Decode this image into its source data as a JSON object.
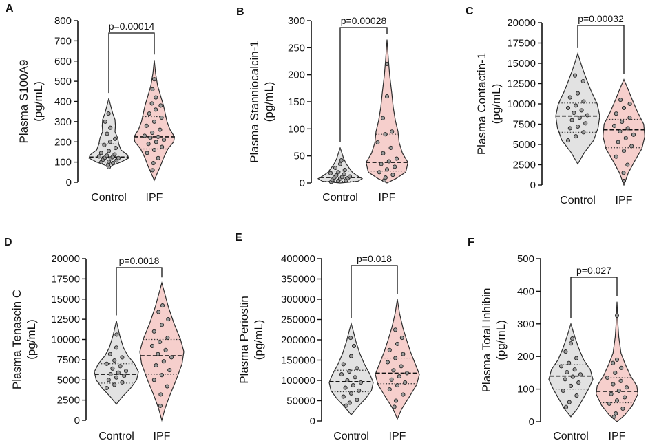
{
  "figure": {
    "panels": [
      "A",
      "B",
      "C",
      "D",
      "E",
      "F"
    ]
  },
  "colors": {
    "control_fill": "#e2e2e2",
    "ipf_fill": "#f6cfcc",
    "outline": "#2b2b2b",
    "point_fill": "#9a9a9a"
  },
  "chart_data": [
    {
      "panel": "A",
      "type": "violin",
      "ylabel_line1": "Plasma S100A9",
      "ylabel_line2": "(pg/mL)",
      "yticks": [
        "0",
        "100",
        "200",
        "300",
        "400",
        "500",
        "600",
        "700",
        "800"
      ],
      "ylim": [
        0,
        800
      ],
      "categories": [
        "Control",
        "IPF"
      ],
      "pvalue": "p=0.00014",
      "series": [
        {
          "name": "Control",
          "min": 70,
          "max": 415,
          "median": 125,
          "q1": 100,
          "q3": 190,
          "profile": [
            [
              70,
              0
            ],
            [
              85,
              0.18
            ],
            [
              100,
              0.55
            ],
            [
              120,
              0.9
            ],
            [
              135,
              0.85
            ],
            [
              160,
              0.55
            ],
            [
              190,
              0.45
            ],
            [
              220,
              0.4
            ],
            [
              250,
              0.28
            ],
            [
              280,
              0.3
            ],
            [
              310,
              0.28
            ],
            [
              340,
              0.18
            ],
            [
              380,
              0.08
            ],
            [
              415,
              0
            ]
          ],
          "points": [
            75,
            88,
            95,
            100,
            102,
            108,
            112,
            118,
            120,
            122,
            125,
            128,
            132,
            138,
            145,
            155,
            170,
            185,
            200,
            215,
            240,
            270,
            300,
            340
          ]
        },
        {
          "name": "IPF",
          "min": 10,
          "max": 605,
          "median": 225,
          "q1": 165,
          "q3": 325,
          "profile": [
            [
              10,
              0
            ],
            [
              40,
              0.12
            ],
            [
              80,
              0.28
            ],
            [
              120,
              0.42
            ],
            [
              165,
              0.62
            ],
            [
              200,
              0.88
            ],
            [
              225,
              0.92
            ],
            [
              260,
              0.72
            ],
            [
              300,
              0.58
            ],
            [
              340,
              0.5
            ],
            [
              380,
              0.42
            ],
            [
              430,
              0.28
            ],
            [
              480,
              0.15
            ],
            [
              540,
              0.06
            ],
            [
              605,
              0
            ]
          ],
          "points": [
            60,
            95,
            120,
            145,
            160,
            175,
            190,
            200,
            210,
            220,
            225,
            230,
            245,
            260,
            280,
            300,
            320,
            340,
            360,
            380,
            390,
            420,
            460,
            510
          ]
        }
      ]
    },
    {
      "panel": "B",
      "type": "violin",
      "ylabel_line1": "Plasma Stanniocalcin-1",
      "ylabel_line2": "(pg/mL)",
      "yticks": [
        "0",
        "50",
        "100",
        "150",
        "200",
        "250",
        "300"
      ],
      "ylim": [
        0,
        300
      ],
      "categories": [
        "Control",
        "IPF"
      ],
      "pvalue": "p=0.00028",
      "series": [
        {
          "name": "Control",
          "min": 0,
          "max": 65,
          "median": 10,
          "q1": 3,
          "q3": 22,
          "profile": [
            [
              0,
              0
            ],
            [
              3,
              0.8
            ],
            [
              8,
              1.0
            ],
            [
              14,
              0.75
            ],
            [
              20,
              0.55
            ],
            [
              28,
              0.4
            ],
            [
              35,
              0.28
            ],
            [
              45,
              0.16
            ],
            [
              55,
              0.08
            ],
            [
              65,
              0
            ]
          ],
          "points": [
            2,
            4,
            5,
            6,
            8,
            9,
            10,
            11,
            12,
            14,
            16,
            18,
            20,
            24,
            28,
            35,
            42
          ]
        },
        {
          "name": "IPF",
          "min": 0,
          "max": 265,
          "median": 38,
          "q1": 22,
          "q3": 90,
          "profile": [
            [
              0,
              0
            ],
            [
              8,
              0.4
            ],
            [
              20,
              0.85
            ],
            [
              38,
              0.95
            ],
            [
              55,
              0.7
            ],
            [
              75,
              0.55
            ],
            [
              95,
              0.5
            ],
            [
              115,
              0.38
            ],
            [
              140,
              0.28
            ],
            [
              165,
              0.22
            ],
            [
              200,
              0.12
            ],
            [
              230,
              0.06
            ],
            [
              265,
              0
            ]
          ],
          "points": [
            5,
            10,
            15,
            20,
            25,
            30,
            35,
            40,
            45,
            55,
            65,
            75,
            90,
            95,
            120,
            160,
            220
          ]
        }
      ]
    },
    {
      "panel": "C",
      "type": "violin",
      "ylabel_line1": "Plasma Contactin-1",
      "ylabel_line2": "(pg/mL)",
      "yticks": [
        "0",
        "2500",
        "5000",
        "7500",
        "10000",
        "12500",
        "15000",
        "17500",
        "20000"
      ],
      "ylim": [
        0,
        20000
      ],
      "categories": [
        "Control",
        "IPF"
      ],
      "pvalue": "p=0.00032",
      "series": [
        {
          "name": "Control",
          "min": 2600,
          "max": 16200,
          "median": 8500,
          "q1": 6500,
          "q3": 10100,
          "profile": [
            [
              2600,
              0
            ],
            [
              4000,
              0.3
            ],
            [
              5500,
              0.72
            ],
            [
              7000,
              0.92
            ],
            [
              8500,
              1.0
            ],
            [
              10000,
              0.88
            ],
            [
              11500,
              0.62
            ],
            [
              13000,
              0.4
            ],
            [
              14500,
              0.2
            ],
            [
              16200,
              0
            ]
          ],
          "points": [
            5500,
            6000,
            6500,
            7000,
            7200,
            7600,
            8000,
            8300,
            8600,
            8900,
            9200,
            9500,
            9800,
            10300,
            10800,
            11300,
            12800,
            13500
          ]
        },
        {
          "name": "IPF",
          "min": 0,
          "max": 13000,
          "median": 6800,
          "q1": 4600,
          "q3": 8100,
          "profile": [
            [
              0,
              0
            ],
            [
              1500,
              0.2
            ],
            [
              3000,
              0.5
            ],
            [
              4500,
              0.82
            ],
            [
              6000,
              0.95
            ],
            [
              7500,
              0.9
            ],
            [
              9000,
              0.62
            ],
            [
              10500,
              0.38
            ],
            [
              12000,
              0.16
            ],
            [
              13000,
              0
            ]
          ],
          "points": [
            500,
            1500,
            2500,
            3500,
            4200,
            4800,
            5300,
            5800,
            6200,
            6600,
            7000,
            7300,
            7800,
            8300,
            8800,
            9500,
            10000,
            10500
          ]
        }
      ]
    },
    {
      "panel": "D",
      "type": "violin",
      "ylabel_line1": "Plasma Tenascin C",
      "ylabel_line2": "(pg/mL)",
      "yticks": [
        "0",
        "2500",
        "5000",
        "7500",
        "10000",
        "12500",
        "15000",
        "17500",
        "20000"
      ],
      "ylim": [
        0,
        20000
      ],
      "categories": [
        "Control",
        "IPF"
      ],
      "pvalue": "p=0.0018",
      "series": [
        {
          "name": "Control",
          "min": 2000,
          "max": 12300,
          "median": 5700,
          "q1": 4600,
          "q3": 7000,
          "profile": [
            [
              2000,
              0
            ],
            [
              3000,
              0.3
            ],
            [
              4000,
              0.65
            ],
            [
              5000,
              0.92
            ],
            [
              6000,
              1.0
            ],
            [
              7000,
              0.82
            ],
            [
              8000,
              0.52
            ],
            [
              9000,
              0.32
            ],
            [
              10500,
              0.15
            ],
            [
              12300,
              0
            ]
          ],
          "points": [
            4000,
            4400,
            4700,
            5000,
            5300,
            5500,
            5700,
            5900,
            6100,
            6400,
            6700,
            7000,
            7400,
            7800,
            8200,
            9000,
            10600
          ]
        },
        {
          "name": "IPF",
          "min": 0,
          "max": 17000,
          "median": 8000,
          "q1": 5700,
          "q3": 10000,
          "profile": [
            [
              0,
              0
            ],
            [
              1500,
              0.15
            ],
            [
              3000,
              0.35
            ],
            [
              5000,
              0.65
            ],
            [
              7000,
              0.92
            ],
            [
              8500,
              1.0
            ],
            [
              10000,
              0.85
            ],
            [
              12000,
              0.55
            ],
            [
              14000,
              0.3
            ],
            [
              15500,
              0.15
            ],
            [
              17000,
              0
            ]
          ],
          "points": [
            1800,
            3200,
            4200,
            5000,
            5600,
            6200,
            6800,
            7300,
            7800,
            8200,
            8700,
            9200,
            9700,
            10200,
            11000,
            11800,
            12500,
            13400,
            14200
          ]
        }
      ]
    },
    {
      "panel": "E",
      "type": "violin",
      "ylabel_line1": "Plasma Periostin",
      "ylabel_line2": "(pg/mL)",
      "yticks": [
        "0",
        "50000",
        "100000",
        "150000",
        "200000",
        "250000",
        "300000",
        "350000",
        "400000"
      ],
      "ylim": [
        0,
        400000
      ],
      "categories": [
        "Control",
        "IPF"
      ],
      "pvalue": "p=0.018",
      "series": [
        {
          "name": "Control",
          "min": 15000,
          "max": 240000,
          "median": 97000,
          "q1": 72000,
          "q3": 125000,
          "profile": [
            [
              15000,
              0
            ],
            [
              35000,
              0.3
            ],
            [
              55000,
              0.65
            ],
            [
              75000,
              0.92
            ],
            [
              95000,
              1.0
            ],
            [
              115000,
              0.85
            ],
            [
              140000,
              0.6
            ],
            [
              165000,
              0.4
            ],
            [
              195000,
              0.22
            ],
            [
              220000,
              0.1
            ],
            [
              240000,
              0
            ]
          ],
          "points": [
            38000,
            45000,
            52000,
            60000,
            68000,
            75000,
            82000,
            88000,
            95000,
            100000,
            108000,
            115000,
            122000,
            130000,
            140000,
            160000,
            185000,
            205000
          ]
        },
        {
          "name": "IPF",
          "min": 5000,
          "max": 300000,
          "median": 118000,
          "q1": 92000,
          "q3": 155000,
          "profile": [
            [
              5000,
              0
            ],
            [
              30000,
              0.2
            ],
            [
              60000,
              0.55
            ],
            [
              90000,
              0.88
            ],
            [
              115000,
              1.0
            ],
            [
              140000,
              0.82
            ],
            [
              170000,
              0.6
            ],
            [
              200000,
              0.42
            ],
            [
              230000,
              0.25
            ],
            [
              265000,
              0.1
            ],
            [
              300000,
              0
            ]
          ],
          "points": [
            35000,
            50000,
            65000,
            78000,
            88000,
            95000,
            102000,
            110000,
            118000,
            125000,
            135000,
            145000,
            155000,
            165000,
            175000,
            190000,
            205000,
            225000
          ]
        }
      ]
    },
    {
      "panel": "F",
      "type": "violin",
      "ylabel_line1": "Plasma Total Inhibin",
      "ylabel_line2": "(pg/mL)",
      "yticks": [
        "0",
        "100",
        "200",
        "300",
        "400",
        "500"
      ],
      "ylim": [
        0,
        500
      ],
      "categories": [
        "Control",
        "IPF"
      ],
      "pvalue": "p=0.027",
      "series": [
        {
          "name": "Control",
          "min": 15,
          "max": 300,
          "median": 140,
          "q1": 100,
          "q3": 175,
          "profile": [
            [
              15,
              0
            ],
            [
              40,
              0.3
            ],
            [
              70,
              0.55
            ],
            [
              100,
              0.8
            ],
            [
              130,
              1.0
            ],
            [
              160,
              0.88
            ],
            [
              190,
              0.58
            ],
            [
              225,
              0.36
            ],
            [
              260,
              0.18
            ],
            [
              300,
              0
            ]
          ],
          "points": [
            45,
            60,
            80,
            95,
            110,
            120,
            130,
            138,
            145,
            152,
            160,
            170,
            180,
            195,
            215,
            240,
            255
          ]
        },
        {
          "name": "IPF",
          "min": 0,
          "max": 368,
          "median": 93,
          "q1": 58,
          "q3": 135,
          "profile": [
            [
              0,
              0
            ],
            [
              20,
              0.35
            ],
            [
              50,
              0.7
            ],
            [
              85,
              0.95
            ],
            [
              110,
              0.9
            ],
            [
              140,
              0.62
            ],
            [
              175,
              0.38
            ],
            [
              210,
              0.18
            ],
            [
              260,
              0.08
            ],
            [
              300,
              0.04
            ],
            [
              340,
              0.02
            ],
            [
              368,
              0
            ]
          ],
          "points": [
            15,
            25,
            40,
            55,
            65,
            75,
            85,
            95,
            105,
            115,
            125,
            135,
            150,
            165,
            180,
            190,
            325
          ]
        }
      ]
    }
  ]
}
